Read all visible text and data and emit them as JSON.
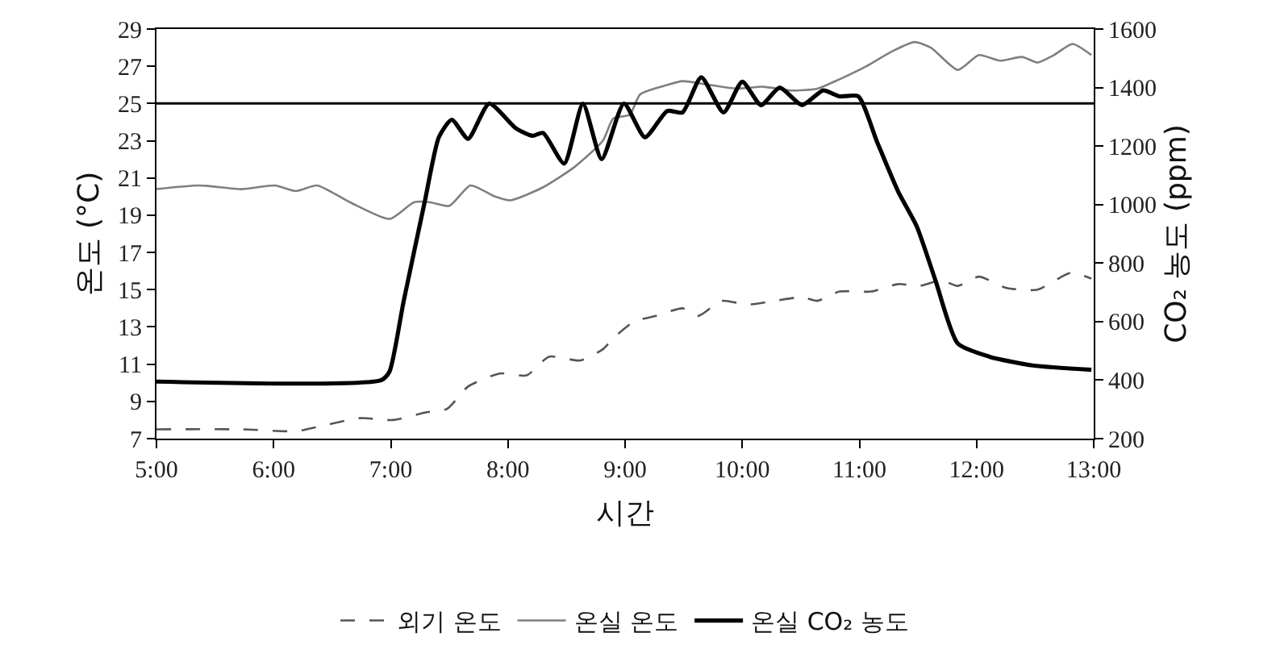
{
  "chart_data": {
    "type": "line",
    "xlabel": "시간",
    "ylabel": "온도 (°C)",
    "y2label": "CO₂ 농도 (ppm)",
    "xlim": [
      5,
      13
    ],
    "xticks": [
      {
        "value": 5,
        "label": "5:00"
      },
      {
        "value": 6,
        "label": "6:00"
      },
      {
        "value": 7,
        "label": "7:00"
      },
      {
        "value": 8,
        "label": "8:00"
      },
      {
        "value": 9,
        "label": "9:00"
      },
      {
        "value": 10,
        "label": "10:00"
      },
      {
        "value": 11,
        "label": "11:00"
      },
      {
        "value": 12,
        "label": "12:00"
      },
      {
        "value": 13,
        "label": "13:00"
      }
    ],
    "ylim": [
      7,
      29
    ],
    "yticks": [
      7,
      9,
      11,
      13,
      15,
      17,
      19,
      21,
      23,
      25,
      27,
      29
    ],
    "y2lim": [
      200,
      1600
    ],
    "y2ticks": [
      200,
      400,
      600,
      800,
      1000,
      1200,
      1400,
      1600
    ],
    "legend": "bottom",
    "ref_lines": [
      {
        "axis": "y",
        "value": 25,
        "color": "#000000"
      }
    ],
    "series": [
      {
        "name": "외기 온도",
        "color": "#555555",
        "line_style": "dashed",
        "x": [
          5.0,
          5.73,
          6.19,
          6.42,
          6.74,
          7.02,
          7.29,
          7.48,
          7.66,
          7.93,
          8.16,
          8.35,
          8.62,
          8.81,
          8.9,
          9.08,
          9.27,
          9.49,
          9.63,
          9.82,
          10.05,
          10.28,
          10.51,
          10.64,
          10.83,
          11.1,
          11.33,
          11.51,
          11.7,
          11.84,
          12.02,
          12.25,
          12.52,
          12.8,
          12.98
        ],
        "values": [
          7.5,
          7.5,
          7.4,
          7.7,
          8.1,
          8.0,
          8.4,
          8.6,
          9.8,
          10.5,
          10.4,
          11.4,
          11.2,
          11.8,
          12.4,
          13.3,
          13.6,
          14.0,
          13.6,
          14.4,
          14.2,
          14.4,
          14.6,
          14.4,
          14.9,
          14.9,
          15.3,
          15.2,
          15.5,
          15.2,
          15.7,
          15.1,
          15.0,
          15.9,
          15.6
        ]
      },
      {
        "name": "온실 온도",
        "color": "#7f7f7f",
        "line_style": "solid",
        "x": [
          5.0,
          5.36,
          5.73,
          6.01,
          6.19,
          6.37,
          6.65,
          6.99,
          7.2,
          7.33,
          7.5,
          7.68,
          7.89,
          8.02,
          8.3,
          8.57,
          8.81,
          8.9,
          9.04,
          9.13,
          9.36,
          9.49,
          9.72,
          9.95,
          10.18,
          10.41,
          10.64,
          10.83,
          11.06,
          11.28,
          11.47,
          11.61,
          11.84,
          12.02,
          12.2,
          12.39,
          12.52,
          12.66,
          12.82,
          12.98
        ],
        "values": [
          20.4,
          20.6,
          20.4,
          20.6,
          20.3,
          20.6,
          19.7,
          18.8,
          19.7,
          19.7,
          19.5,
          20.6,
          20.0,
          19.8,
          20.5,
          21.6,
          23.0,
          24.2,
          24.4,
          25.5,
          26.0,
          26.2,
          26.0,
          25.8,
          25.9,
          25.7,
          25.8,
          26.3,
          27.0,
          27.8,
          28.3,
          28.0,
          26.8,
          27.6,
          27.3,
          27.5,
          27.2,
          27.6,
          28.2,
          27.6
        ]
      },
      {
        "name": "온실 CO₂ 농도",
        "color": "#000000",
        "line_style": "solid",
        "axis": "y2",
        "x": [
          5.0,
          6.92,
          6.99,
          7.11,
          7.29,
          7.41,
          7.52,
          7.66,
          7.84,
          8.07,
          8.21,
          8.3,
          8.48,
          8.64,
          8.8,
          8.99,
          9.17,
          9.36,
          9.49,
          9.65,
          9.84,
          10.0,
          10.16,
          10.32,
          10.51,
          10.69,
          10.83,
          10.99,
          11.15,
          11.33,
          11.49,
          11.65,
          11.84,
          12.11,
          12.48,
          12.98
        ],
        "values": [
          395,
          400,
          430,
          670,
          1010,
          1230,
          1290,
          1225,
          1345,
          1260,
          1235,
          1245,
          1140,
          1345,
          1155,
          1345,
          1230,
          1320,
          1315,
          1435,
          1315,
          1420,
          1340,
          1400,
          1340,
          1390,
          1370,
          1370,
          1215,
          1045,
          925,
          740,
          525,
          480,
          450,
          435
        ]
      }
    ]
  }
}
